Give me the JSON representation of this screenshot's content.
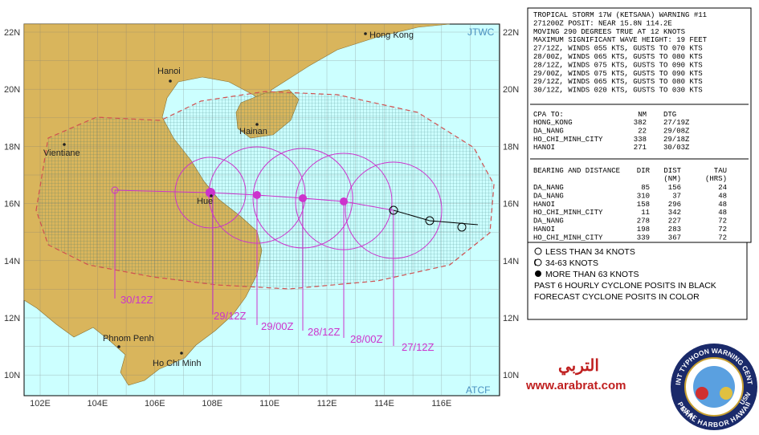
{
  "map": {
    "lat_labels": [
      "22N",
      "20N",
      "18N",
      "16N",
      "14N",
      "12N",
      "10N"
    ],
    "lon_labels": [
      "102E",
      "104E",
      "106E",
      "108E",
      "110E",
      "112E",
      "114E",
      "116E"
    ],
    "cities": [
      "Hong Kong",
      "Hanoi",
      "Hainan",
      "Vientiane",
      "Hue",
      "Phnom Penh",
      "Ho Chi Minh"
    ],
    "forecast_times": [
      "30/12Z",
      "29/12Z",
      "29/00Z",
      "28/12Z",
      "28/00Z",
      "27/12Z"
    ],
    "source_top": "JTWC",
    "source_bottom": "ATCF"
  },
  "warning": {
    "lines": [
      "TROPICAL STORM 17W (KETSANA) WARNING #11",
      "271200Z POSIT: NEAR 15.8N 114.2E",
      "MOVING 290 DEGREES TRUE AT 12 KNOTS",
      "MAXIMUM SIGNIFICANT WAVE HEIGHT: 19 FEET",
      "27/12Z, WINDS 055 KTS, GUSTS TO 070 KTS",
      "28/00Z, WINDS 065 KTS, GUSTS TO 080 KTS",
      "28/12Z, WINDS 075 KTS, GUSTS TO 090 KTS",
      "29/00Z, WINDS 075 KTS, GUSTS TO 090 KTS",
      "29/12Z, WINDS 065 KTS, GUSTS TO 080 KTS",
      "30/12Z, WINDS 020 KTS, GUSTS TO 030 KTS"
    ]
  },
  "cpa": {
    "header": [
      "CPA TO:",
      "NM",
      "DTG"
    ],
    "rows": [
      [
        "HONG_KONG",
        "382",
        "27/19Z"
      ],
      [
        "DA_NANG",
        "22",
        "29/08Z"
      ],
      [
        "HO_CHI_MINH_CITY",
        "338",
        "29/18Z"
      ],
      [
        "HANOI",
        "271",
        "30/03Z"
      ]
    ]
  },
  "bearing": {
    "header": [
      "BEARING AND DISTANCE",
      "DIR",
      "DIST",
      "TAU"
    ],
    "subheader": [
      "(NM)",
      "(HRS)"
    ],
    "rows": [
      [
        "DA_NANG",
        "85",
        "156",
        "24"
      ],
      [
        "DA_NANG",
        "310",
        "37",
        "48"
      ],
      [
        "HANOI",
        "158",
        "296",
        "48"
      ],
      [
        "HO_CHI_MINH_CITY",
        "11",
        "342",
        "48"
      ],
      [
        "DA_NANG",
        "278",
        "227",
        "72"
      ],
      [
        "HANOI",
        "198",
        "283",
        "72"
      ],
      [
        "HO_CHI_MINH_CITY",
        "339",
        "367",
        "72"
      ]
    ]
  },
  "legend": {
    "items": [
      "LESS THAN 34 KNOTS",
      "34-63 KNOTS",
      "MORE THAN 63 KNOTS"
    ],
    "notes": [
      "PAST 6 HOURLY CYCLONE POSITS IN BLACK",
      "FORECAST CYCLONE POSITS IN COLOR"
    ]
  },
  "watermark": {
    "arabic": "التربي",
    "url": "www.arabrat.com"
  },
  "emblem": {
    "top": "JOINT TYPHOON WARNING CENTER",
    "bottom": "PEARL HARBOR HAWAII",
    "left": "USAF",
    "right": "USN"
  }
}
